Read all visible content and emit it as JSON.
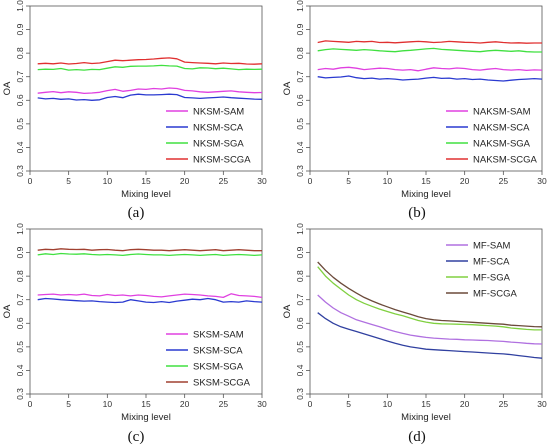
{
  "chart_data": [
    {
      "type": "line",
      "caption": "(a)",
      "xlabel": "Mixing level",
      "ylabel": "OA",
      "xlim": [
        0,
        30
      ],
      "ylim": [
        0.3,
        1.0
      ],
      "xticks": [
        0,
        5,
        10,
        15,
        20,
        25,
        30
      ],
      "yticks": [
        0.3,
        0.4,
        0.5,
        0.6,
        0.7,
        0.8,
        0.9,
        1.0
      ],
      "legend_position": "bottom-right",
      "x": [
        1,
        2,
        3,
        4,
        5,
        6,
        7,
        8,
        9,
        10,
        11,
        12,
        13,
        14,
        15,
        16,
        17,
        18,
        19,
        20,
        21,
        22,
        23,
        24,
        25,
        26,
        27,
        28,
        29,
        30
      ],
      "series": [
        {
          "name": "NKSM-SAM",
          "color": "#e040e0",
          "values": [
            0.63,
            0.634,
            0.637,
            0.632,
            0.636,
            0.634,
            0.629,
            0.631,
            0.634,
            0.641,
            0.646,
            0.638,
            0.642,
            0.648,
            0.646,
            0.65,
            0.648,
            0.652,
            0.65,
            0.642,
            0.64,
            0.636,
            0.634,
            0.636,
            0.638,
            0.64,
            0.636,
            0.634,
            0.632,
            0.633
          ]
        },
        {
          "name": "NKSM-SCA",
          "color": "#2a3ad0",
          "values": [
            0.61,
            0.606,
            0.608,
            0.604,
            0.606,
            0.601,
            0.603,
            0.6,
            0.602,
            0.612,
            0.616,
            0.611,
            0.622,
            0.626,
            0.623,
            0.623,
            0.624,
            0.626,
            0.624,
            0.612,
            0.61,
            0.608,
            0.61,
            0.612,
            0.614,
            0.611,
            0.609,
            0.607,
            0.605,
            0.604
          ]
        },
        {
          "name": "NKSM-SGA",
          "color": "#40e040",
          "values": [
            0.73,
            0.732,
            0.731,
            0.735,
            0.728,
            0.73,
            0.728,
            0.731,
            0.73,
            0.736,
            0.742,
            0.74,
            0.744,
            0.745,
            0.745,
            0.746,
            0.748,
            0.746,
            0.745,
            0.735,
            0.733,
            0.738,
            0.737,
            0.734,
            0.736,
            0.733,
            0.73,
            0.732,
            0.731,
            0.732
          ]
        },
        {
          "name": "NKSM-SCGA",
          "color": "#e03030",
          "values": [
            0.755,
            0.757,
            0.755,
            0.758,
            0.754,
            0.756,
            0.76,
            0.756,
            0.758,
            0.764,
            0.77,
            0.768,
            0.77,
            0.772,
            0.773,
            0.775,
            0.778,
            0.78,
            0.776,
            0.762,
            0.76,
            0.758,
            0.757,
            0.755,
            0.758,
            0.756,
            0.757,
            0.754,
            0.753,
            0.755
          ]
        }
      ]
    },
    {
      "type": "line",
      "caption": "(b)",
      "xlabel": "Mixing level",
      "ylabel": "OA",
      "xlim": [
        0,
        30
      ],
      "ylim": [
        0.3,
        1.0
      ],
      "xticks": [
        0,
        5,
        10,
        15,
        20,
        25,
        30
      ],
      "yticks": [
        0.3,
        0.4,
        0.5,
        0.6,
        0.7,
        0.8,
        0.9,
        1.0
      ],
      "legend_position": "bottom-right",
      "x": [
        1,
        2,
        3,
        4,
        5,
        6,
        7,
        8,
        9,
        10,
        11,
        12,
        13,
        14,
        15,
        16,
        17,
        18,
        19,
        20,
        21,
        22,
        23,
        24,
        25,
        26,
        27,
        28,
        29,
        30
      ],
      "series": [
        {
          "name": "NAKSM-SAM",
          "color": "#e040e0",
          "values": [
            0.73,
            0.735,
            0.732,
            0.738,
            0.74,
            0.736,
            0.73,
            0.733,
            0.736,
            0.735,
            0.73,
            0.728,
            0.73,
            0.725,
            0.732,
            0.738,
            0.735,
            0.733,
            0.737,
            0.735,
            0.73,
            0.728,
            0.732,
            0.735,
            0.73,
            0.728,
            0.73,
            0.727,
            0.729,
            0.728
          ]
        },
        {
          "name": "NAKSM-SCA",
          "color": "#2a3ad0",
          "values": [
            0.7,
            0.695,
            0.697,
            0.699,
            0.703,
            0.696,
            0.692,
            0.694,
            0.69,
            0.692,
            0.69,
            0.686,
            0.688,
            0.69,
            0.694,
            0.697,
            0.693,
            0.694,
            0.69,
            0.692,
            0.688,
            0.69,
            0.686,
            0.684,
            0.682,
            0.685,
            0.688,
            0.69,
            0.692,
            0.69
          ]
        },
        {
          "name": "NAKSM-SGA",
          "color": "#40e040",
          "values": [
            0.81,
            0.815,
            0.818,
            0.816,
            0.814,
            0.812,
            0.815,
            0.813,
            0.81,
            0.808,
            0.806,
            0.81,
            0.812,
            0.815,
            0.818,
            0.82,
            0.816,
            0.814,
            0.812,
            0.81,
            0.808,
            0.806,
            0.81,
            0.812,
            0.81,
            0.808,
            0.81,
            0.806,
            0.805,
            0.805
          ]
        },
        {
          "name": "NAKSM-SCGA",
          "color": "#e03030",
          "values": [
            0.845,
            0.852,
            0.85,
            0.848,
            0.846,
            0.85,
            0.848,
            0.85,
            0.845,
            0.846,
            0.844,
            0.846,
            0.848,
            0.85,
            0.848,
            0.845,
            0.847,
            0.85,
            0.848,
            0.846,
            0.845,
            0.843,
            0.846,
            0.848,
            0.845,
            0.843,
            0.844,
            0.842,
            0.843,
            0.843
          ]
        }
      ]
    },
    {
      "type": "line",
      "caption": "(c)",
      "xlabel": "Mixing level",
      "ylabel": "OA",
      "xlim": [
        0,
        30
      ],
      "ylim": [
        0.3,
        1.0
      ],
      "xticks": [
        0,
        5,
        10,
        15,
        20,
        25,
        30
      ],
      "yticks": [
        0.3,
        0.4,
        0.5,
        0.6,
        0.7,
        0.8,
        0.9,
        1.0
      ],
      "legend_position": "bottom-right",
      "x": [
        1,
        2,
        3,
        4,
        5,
        6,
        7,
        8,
        9,
        10,
        11,
        12,
        13,
        14,
        15,
        16,
        17,
        18,
        19,
        20,
        21,
        22,
        23,
        24,
        25,
        26,
        27,
        28,
        29,
        30
      ],
      "series": [
        {
          "name": "SKSM-SAM",
          "color": "#e040e0",
          "values": [
            0.72,
            0.722,
            0.724,
            0.72,
            0.722,
            0.72,
            0.724,
            0.718,
            0.716,
            0.722,
            0.718,
            0.72,
            0.716,
            0.72,
            0.718,
            0.714,
            0.712,
            0.716,
            0.72,
            0.724,
            0.722,
            0.72,
            0.716,
            0.714,
            0.71,
            0.725,
            0.718,
            0.716,
            0.714,
            0.71
          ]
        },
        {
          "name": "SKSM-SCA",
          "color": "#2a3ad0",
          "values": [
            0.7,
            0.705,
            0.703,
            0.7,
            0.698,
            0.696,
            0.694,
            0.695,
            0.692,
            0.69,
            0.688,
            0.69,
            0.7,
            0.695,
            0.69,
            0.688,
            0.692,
            0.688,
            0.694,
            0.698,
            0.702,
            0.7,
            0.705,
            0.7,
            0.69,
            0.692,
            0.69,
            0.695,
            0.692,
            0.69
          ]
        },
        {
          "name": "SKSM-SGA",
          "color": "#40e040",
          "values": [
            0.89,
            0.895,
            0.892,
            0.896,
            0.894,
            0.893,
            0.895,
            0.892,
            0.89,
            0.892,
            0.89,
            0.888,
            0.892,
            0.894,
            0.892,
            0.89,
            0.89,
            0.888,
            0.89,
            0.892,
            0.89,
            0.888,
            0.89,
            0.892,
            0.888,
            0.89,
            0.892,
            0.89,
            0.888,
            0.89
          ]
        },
        {
          "name": "SKSM-SCGA",
          "color": "#a04030",
          "values": [
            0.91,
            0.914,
            0.912,
            0.916,
            0.914,
            0.913,
            0.914,
            0.91,
            0.912,
            0.913,
            0.91,
            0.908,
            0.912,
            0.914,
            0.912,
            0.91,
            0.91,
            0.908,
            0.91,
            0.912,
            0.91,
            0.908,
            0.91,
            0.912,
            0.908,
            0.91,
            0.912,
            0.91,
            0.908,
            0.908
          ]
        }
      ]
    },
    {
      "type": "line",
      "caption": "(d)",
      "xlabel": "Mixing level",
      "ylabel": "OA",
      "xlim": [
        0,
        30
      ],
      "ylim": [
        0.3,
        1.0
      ],
      "xticks": [
        0,
        5,
        10,
        15,
        20,
        25,
        30
      ],
      "yticks": [
        0.3,
        0.4,
        0.5,
        0.6,
        0.7,
        0.8,
        0.9,
        1.0
      ],
      "legend_position": "top-right",
      "x": [
        1,
        2,
        3,
        4,
        5,
        6,
        7,
        8,
        9,
        10,
        11,
        12,
        13,
        14,
        15,
        16,
        17,
        18,
        19,
        20,
        21,
        22,
        23,
        24,
        25,
        26,
        27,
        28,
        29,
        30
      ],
      "series": [
        {
          "name": "MF-SAM",
          "color": "#b070e0",
          "values": [
            0.72,
            0.69,
            0.665,
            0.645,
            0.63,
            0.615,
            0.605,
            0.595,
            0.585,
            0.575,
            0.565,
            0.557,
            0.55,
            0.545,
            0.54,
            0.537,
            0.535,
            0.533,
            0.532,
            0.53,
            0.529,
            0.528,
            0.527,
            0.525,
            0.523,
            0.52,
            0.518,
            0.515,
            0.513,
            0.512
          ]
        },
        {
          "name": "MF-SCA",
          "color": "#3040a0",
          "values": [
            0.645,
            0.62,
            0.6,
            0.585,
            0.575,
            0.565,
            0.555,
            0.545,
            0.535,
            0.525,
            0.515,
            0.507,
            0.5,
            0.495,
            0.49,
            0.488,
            0.486,
            0.484,
            0.482,
            0.48,
            0.478,
            0.476,
            0.474,
            0.472,
            0.47,
            0.467,
            0.463,
            0.459,
            0.455,
            0.452
          ]
        },
        {
          "name": "MF-SGA",
          "color": "#80d040",
          "values": [
            0.84,
            0.8,
            0.77,
            0.745,
            0.72,
            0.7,
            0.685,
            0.672,
            0.66,
            0.65,
            0.64,
            0.632,
            0.622,
            0.612,
            0.605,
            0.6,
            0.598,
            0.597,
            0.596,
            0.595,
            0.594,
            0.592,
            0.59,
            0.588,
            0.585,
            0.58,
            0.577,
            0.574,
            0.572,
            0.572
          ]
        },
        {
          "name": "MF-SCGA",
          "color": "#6b4a3a",
          "values": [
            0.86,
            0.825,
            0.795,
            0.77,
            0.748,
            0.728,
            0.71,
            0.695,
            0.682,
            0.67,
            0.658,
            0.648,
            0.638,
            0.628,
            0.62,
            0.615,
            0.612,
            0.61,
            0.608,
            0.606,
            0.604,
            0.602,
            0.6,
            0.598,
            0.596,
            0.592,
            0.59,
            0.588,
            0.586,
            0.585
          ]
        }
      ]
    }
  ]
}
